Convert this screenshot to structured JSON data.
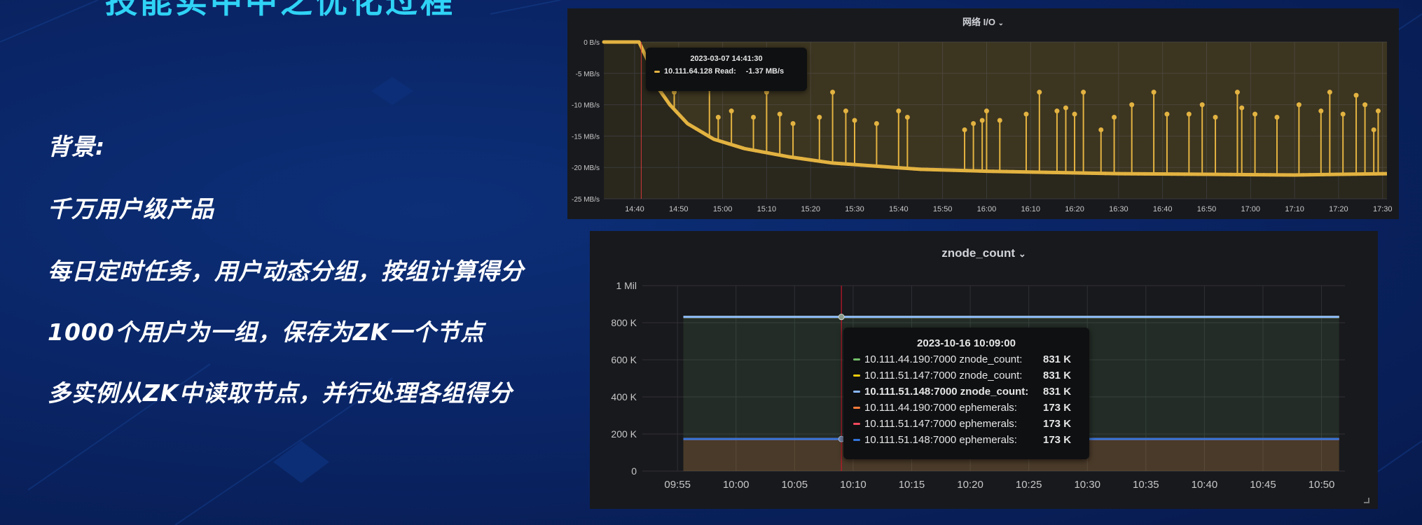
{
  "slide": {
    "title_fragment": "技能实中中之优化过程",
    "bullets": [
      "背景:",
      "千万用户级产品",
      "每日定时任务，用户动态分组，按组计算得分",
      "1000个用户为一组，保存为ZK一个节点",
      "多实例从ZK中读取节点，并行处理各组得分"
    ]
  },
  "panels": {
    "network": {
      "title": "网络 I/O",
      "tooltip": {
        "time": "2023-03-07 14:41:30",
        "series": "10.111.64.128 Read:",
        "value": "-1.37 MB/s"
      }
    },
    "znode": {
      "title": "znode_count",
      "tooltip": {
        "time": "2023-10-16 10:09:00",
        "rows": [
          {
            "label": "10.111.44.190:7000 znode_count:",
            "value": "831 K",
            "color": "#73bf69"
          },
          {
            "label": "10.111.51.147:7000 znode_count:",
            "value": "831 K",
            "color": "#f2cc0c"
          },
          {
            "label": "10.111.51.148:7000 znode_count:",
            "value": "831 K",
            "color": "#8ab8ff"
          },
          {
            "label": "10.111.44.190:7000 ephemerals:",
            "value": "173 K",
            "color": "#ff7c3a"
          },
          {
            "label": "10.111.51.147:7000 ephemerals:",
            "value": "173 K",
            "color": "#f2495c"
          },
          {
            "label": "10.111.51.148:7000 ephemerals:",
            "value": "173 K",
            "color": "#3274d9"
          }
        ]
      }
    }
  },
  "chart_data": [
    {
      "type": "line",
      "title": "网络 I/O",
      "x_ticks": [
        "14:40",
        "14:50",
        "15:00",
        "15:10",
        "15:20",
        "15:30",
        "15:40",
        "15:50",
        "16:00",
        "16:10",
        "16:20",
        "16:30",
        "16:40",
        "16:50",
        "17:00",
        "17:10",
        "17:20",
        "17:30"
      ],
      "y_ticks": [
        "0 B/s",
        "-5 MB/s",
        "-10 MB/s",
        "-15 MB/s",
        "-20 MB/s",
        "-25 MB/s"
      ],
      "ylim": [
        -25,
        0
      ],
      "x_range_minutes": [
        -7,
        171
      ],
      "series": [
        {
          "name": "10.111.64.128 Read",
          "color": "#e3b341",
          "baseline": [
            [
              -7,
              0
            ],
            [
              1,
              0
            ],
            [
              3,
              -3
            ],
            [
              5,
              -7
            ],
            [
              8,
              -10
            ],
            [
              12,
              -13
            ],
            [
              18,
              -15.5
            ],
            [
              25,
              -17
            ],
            [
              35,
              -18.3
            ],
            [
              45,
              -19.3
            ],
            [
              55,
              -19.8
            ],
            [
              65,
              -20.3
            ],
            [
              80,
              -20.6
            ],
            [
              95,
              -20.8
            ],
            [
              110,
              -21
            ],
            [
              130,
              -21.1
            ],
            [
              150,
              -21.2
            ],
            [
              171,
              -21
            ]
          ],
          "spikes": [
            [
              9,
              -8
            ],
            [
              17,
              -7.5
            ],
            [
              19,
              -12
            ],
            [
              22,
              -11
            ],
            [
              27,
              -12
            ],
            [
              30,
              -8
            ],
            [
              33,
              -11.5
            ],
            [
              36,
              -13
            ],
            [
              42,
              -12
            ],
            [
              45,
              -8
            ],
            [
              48,
              -11
            ],
            [
              50,
              -12.5
            ],
            [
              55,
              -13
            ],
            [
              60,
              -11
            ],
            [
              62,
              -12
            ],
            [
              75,
              -14
            ],
            [
              77,
              -13
            ],
            [
              79,
              -12.5
            ],
            [
              80,
              -11
            ],
            [
              83,
              -12.5
            ],
            [
              89,
              -11.5
            ],
            [
              92,
              -8
            ],
            [
              96,
              -11
            ],
            [
              98,
              -10.5
            ],
            [
              100,
              -11.5
            ],
            [
              102,
              -8
            ],
            [
              106,
              -14
            ],
            [
              109,
              -12
            ],
            [
              113,
              -10
            ],
            [
              118,
              -8
            ],
            [
              121,
              -11.5
            ],
            [
              126,
              -11.5
            ],
            [
              129,
              -10
            ],
            [
              132,
              -12
            ],
            [
              137,
              -8
            ],
            [
              138,
              -10.5
            ],
            [
              141,
              -11.5
            ],
            [
              146,
              -12
            ],
            [
              151,
              -10
            ],
            [
              156,
              -11
            ],
            [
              158,
              -8
            ],
            [
              161,
              -11.5
            ],
            [
              164,
              -8.5
            ],
            [
              166,
              -10
            ],
            [
              168,
              -14
            ],
            [
              169,
              -11
            ]
          ]
        }
      ],
      "tooltip_x": 1.5,
      "tooltip_value": -1.37
    },
    {
      "type": "line",
      "title": "znode_count",
      "x_ticks": [
        "09:55",
        "10:00",
        "10:05",
        "10:10",
        "10:15",
        "10:20",
        "10:25",
        "10:30",
        "10:35",
        "10:40",
        "10:45",
        "10:50"
      ],
      "y_ticks": [
        "0",
        "200 K",
        "400 K",
        "600 K",
        "800 K",
        "1 Mil"
      ],
      "ylim": [
        0,
        1000
      ],
      "x_range_minutes": [
        -3,
        57
      ],
      "series": [
        {
          "name": "10.111.44.190:7000 znode_count",
          "color": "#73bf69",
          "value": 831
        },
        {
          "name": "10.111.51.147:7000 znode_count",
          "color": "#f2cc0c",
          "value": 831
        },
        {
          "name": "10.111.51.148:7000 znode_count",
          "color": "#8ab8ff",
          "value": 831
        },
        {
          "name": "10.111.44.190:7000 ephemerals",
          "color": "#ff7c3a",
          "value": 173
        },
        {
          "name": "10.111.51.147:7000 ephemerals",
          "color": "#f2495c",
          "value": 173
        },
        {
          "name": "10.111.51.148:7000 ephemerals",
          "color": "#3274d9",
          "value": 173
        }
      ],
      "tooltip_x": 14
    }
  ]
}
